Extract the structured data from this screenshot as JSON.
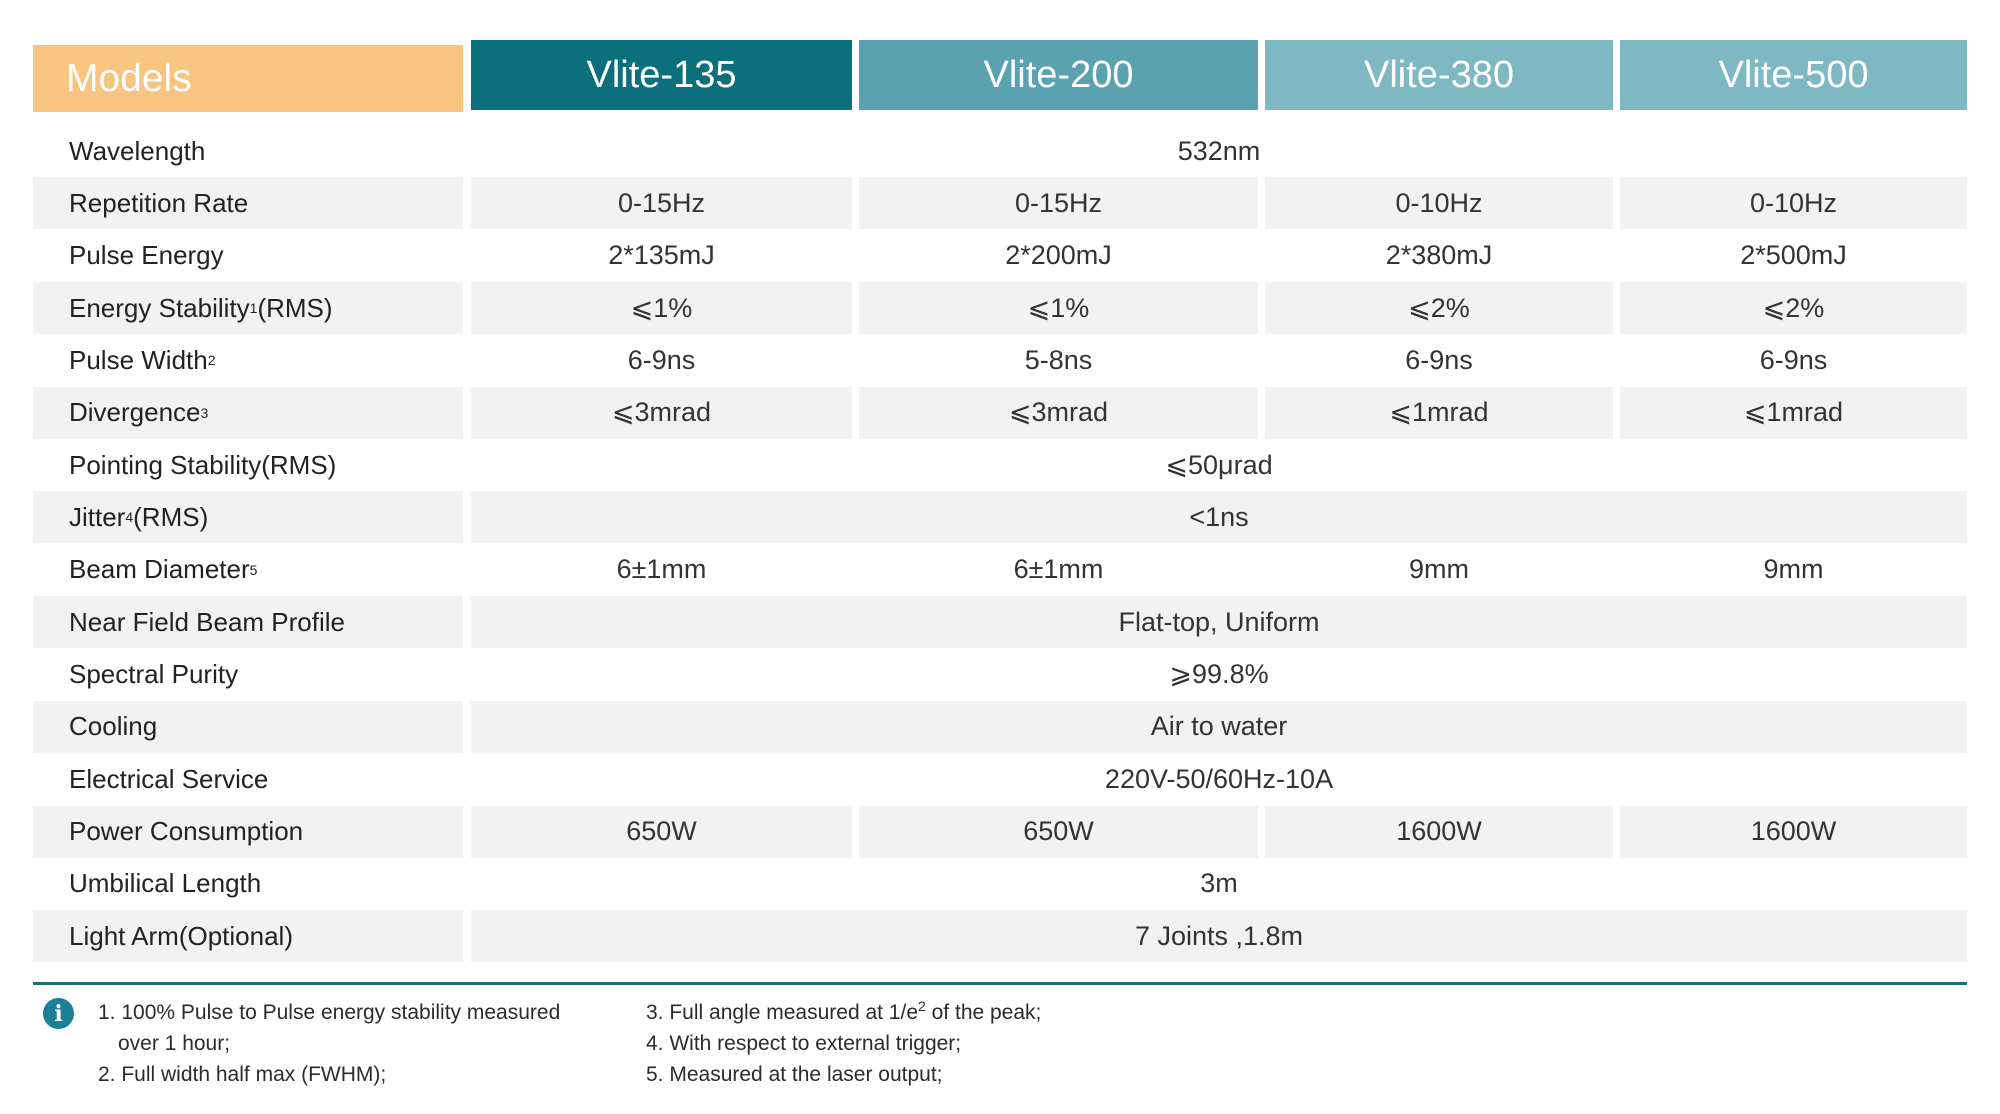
{
  "header": {
    "models_label": "Models",
    "models": [
      "Vlite-135",
      "Vlite-200",
      "Vlite-380",
      "Vlite-500"
    ],
    "colors": [
      "#0b6f7c",
      "#5aa2af",
      "#7eb8c3",
      "#7eb8c3"
    ]
  },
  "rows": [
    {
      "label": "Wavelength",
      "sup": "",
      "label_suffix": "",
      "span": "532nm"
    },
    {
      "label": "Repetition Rate",
      "sup": "",
      "label_suffix": "",
      "values": [
        "0-15Hz",
        "0-15Hz",
        "0-10Hz",
        "0-10Hz"
      ]
    },
    {
      "label": "Pulse Energy",
      "sup": "",
      "label_suffix": "",
      "values": [
        "2*135mJ",
        "2*200mJ",
        "2*380mJ",
        "2*500mJ"
      ]
    },
    {
      "label": "Energy Stability",
      "sup": "1",
      "label_suffix": " (RMS)",
      "values": [
        "⩽1%",
        "⩽1%",
        "⩽2%",
        "⩽2%"
      ]
    },
    {
      "label": "Pulse Width",
      "sup": "2",
      "label_suffix": "",
      "values": [
        "6-9ns",
        "5-8ns",
        "6-9ns",
        "6-9ns"
      ]
    },
    {
      "label": "Divergence",
      "sup": "3",
      "label_suffix": "",
      "values": [
        "⩽3mrad",
        "⩽3mrad",
        "⩽1mrad",
        "⩽1mrad"
      ]
    },
    {
      "label": "Pointing Stability(RMS)",
      "sup": "",
      "label_suffix": "",
      "span": "⩽50μrad"
    },
    {
      "label": "Jitter",
      "sup": "4",
      "label_suffix": "(RMS)",
      "span": "<1ns"
    },
    {
      "label": "Beam Diameter",
      "sup": "5",
      "label_suffix": "",
      "values": [
        "6±1mm",
        "6±1mm",
        "9mm",
        "9mm"
      ]
    },
    {
      "label": "Near Field  Beam Profile",
      "sup": "",
      "label_suffix": "",
      "span": "Flat-top, Uniform"
    },
    {
      "label": "Spectral Purity",
      "sup": "",
      "label_suffix": "",
      "span": "⩾99.8%"
    },
    {
      "label": "Cooling",
      "sup": "",
      "label_suffix": "",
      "span": "Air to water"
    },
    {
      "label": "Electrical Service",
      "sup": "",
      "label_suffix": "",
      "span": "220V-50/60Hz-10A"
    },
    {
      "label": "Power Consumption",
      "sup": "",
      "label_suffix": "",
      "values": [
        "650W",
        "650W",
        "1600W",
        "1600W"
      ]
    },
    {
      "label": "Umbilical Length",
      "sup": "",
      "label_suffix": "",
      "span": "3m"
    },
    {
      "label": "Light Arm(Optional)",
      "sup": "",
      "label_suffix": "",
      "span": "7 Joints ,1.8m"
    }
  ],
  "footnotes": {
    "icon": "info-icon",
    "n1_line1": "1. 100% Pulse to Pulse energy stability measured",
    "n1_line2": "over 1 hour;",
    "n2": "2. Full width half max (FWHM);",
    "n3_before": "3. Full angle measured at 1/e",
    "n3_sup": "2",
    "n3_after": " of the peak;",
    "n4": "4. With respect to external trigger;",
    "n5": "5. Measured at the laser output;"
  }
}
